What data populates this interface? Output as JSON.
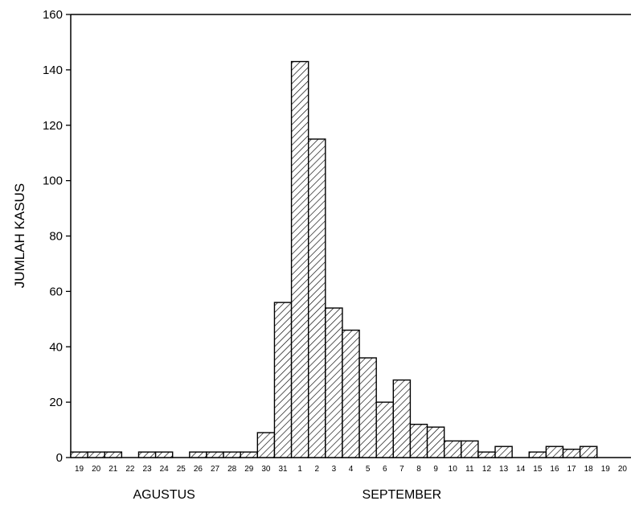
{
  "chart_data": {
    "type": "bar",
    "ylabel": "JUMLAH KASUS",
    "xlabel": "",
    "ylim": [
      0,
      160
    ],
    "yticks": [
      0,
      20,
      40,
      60,
      80,
      100,
      120,
      140,
      160
    ],
    "grid": false,
    "bar_pattern": "diagonal-hatch",
    "categories": [
      "19",
      "20",
      "21",
      "22",
      "23",
      "24",
      "25",
      "26",
      "27",
      "28",
      "29",
      "30",
      "31",
      "1",
      "2",
      "3",
      "4",
      "5",
      "6",
      "7",
      "8",
      "9",
      "10",
      "11",
      "12",
      "13",
      "14",
      "15",
      "16",
      "17",
      "18",
      "19",
      "20"
    ],
    "values": [
      2,
      2,
      2,
      0,
      2,
      2,
      0,
      2,
      2,
      2,
      2,
      9,
      56,
      143,
      115,
      54,
      46,
      36,
      20,
      28,
      12,
      11,
      6,
      6,
      2,
      4,
      0,
      2,
      4,
      3,
      4,
      0,
      0
    ],
    "month_labels": [
      {
        "label": "AGUSTUS",
        "category_index": 5
      },
      {
        "label": "SEPTEMBER",
        "category_index": 19
      }
    ]
  }
}
